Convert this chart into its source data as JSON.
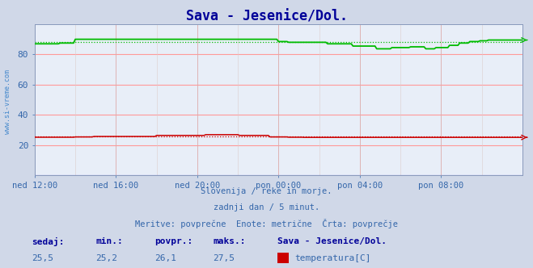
{
  "title": "Sava - Jesenice/Dol.",
  "title_color": "#000099",
  "bg_color": "#d0d8e8",
  "plot_bg_color": "#e8eef8",
  "grid_color_h": "#ff9999",
  "grid_color_v": "#ddaaaa",
  "watermark": "www.si-vreme.com",
  "watermark_color": "#4488cc",
  "subtitle_lines": [
    "Slovenija / reke in morje.",
    "zadnji dan / 5 minut.",
    "Meritve: povprečne  Enote: metrične  Črta: povprečje"
  ],
  "subtitle_color": "#3366aa",
  "xlabel_ticks": [
    "ned 12:00",
    "ned 16:00",
    "ned 20:00",
    "pon 00:00",
    "pon 04:00",
    "pon 08:00"
  ],
  "ylabel_color": "#3366aa",
  "ylim": [
    0,
    100
  ],
  "yticks": [
    20,
    40,
    60,
    80
  ],
  "temp_color": "#cc0000",
  "flow_color": "#00bb00",
  "height_color": "#0000cc",
  "temp_sedaj": 25.5,
  "temp_min": 25.2,
  "temp_povpr": 26.1,
  "temp_maks": 27.5,
  "flow_sedaj": 88.0,
  "flow_min": 83.7,
  "flow_povpr": 88.0,
  "flow_maks": 90.2,
  "legend_title": "Sava - Jesenice/Dol.",
  "legend_title_color": "#000099",
  "table_header_color": "#000099",
  "table_value_color": "#3366aa",
  "n_points": 289
}
